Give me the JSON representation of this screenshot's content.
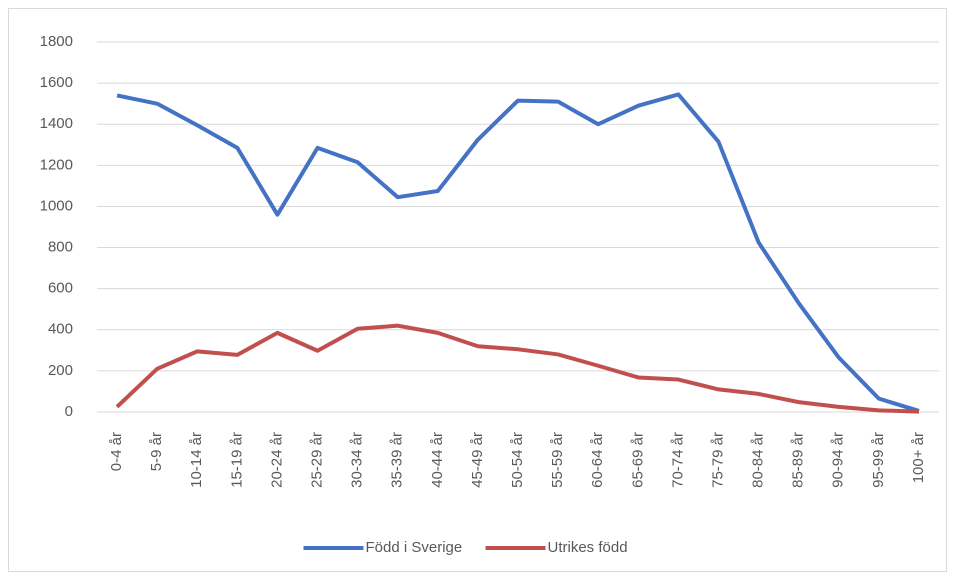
{
  "chart_data": {
    "type": "line",
    "categories": [
      "0-4 år",
      "5-9 år",
      "10-14 år",
      "15-19 år",
      "20-24 år",
      "25-29 år",
      "30-34 år",
      "35-39 år",
      "40-44 år",
      "45-49 år",
      "50-54 år",
      "55-59 år",
      "60-64 år",
      "65-69 år",
      "70-74 år",
      "75-79 år",
      "80-84 år",
      "85-89 år",
      "90-94 år",
      "95-99 år",
      "100+ år"
    ],
    "series": [
      {
        "name": "Född i Sverige",
        "color": "#4472c4",
        "values": [
          1540,
          1500,
          1395,
          1285,
          960,
          1285,
          1215,
          1045,
          1075,
          1325,
          1515,
          1510,
          1400,
          1490,
          1545,
          1315,
          825,
          530,
          265,
          65,
          5
        ]
      },
      {
        "name": "Utrikes född",
        "color": "#c0504d",
        "values": [
          25,
          210,
          295,
          278,
          385,
          298,
          405,
          420,
          385,
          320,
          305,
          280,
          225,
          168,
          158,
          110,
          88,
          48,
          25,
          8,
          2
        ]
      }
    ],
    "ylim": [
      0,
      1800
    ],
    "yticks": [
      0,
      200,
      400,
      600,
      800,
      1000,
      1200,
      1400,
      1600,
      1800
    ],
    "grid": true,
    "legend": "bottom"
  }
}
